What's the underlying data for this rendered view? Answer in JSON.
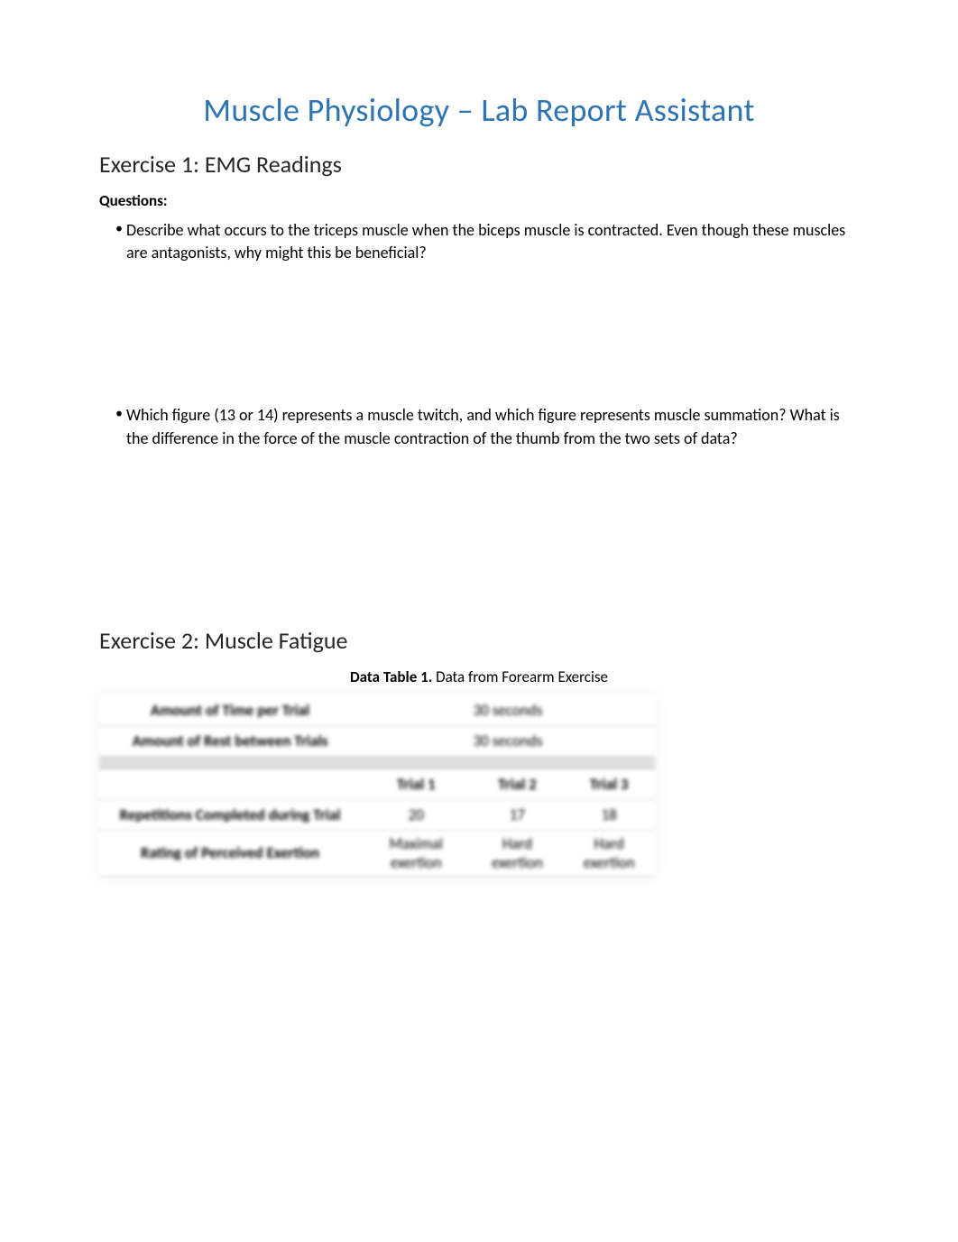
{
  "title": "Muscle Physiology – Lab Report Assistant",
  "exercise1": {
    "heading": "Exercise 1: EMG Readings",
    "questions_label": "Questions:",
    "bullets": [
      "Describe what occurs to the triceps muscle when the biceps muscle is contracted. Even though these muscles are antagonists, why might this be beneficial?",
      "Which figure (13 or 14) represents a muscle twitch, and which figure represents muscle summation? What is the difference in the force of the muscle contraction of the thumb from the two sets of data?"
    ]
  },
  "exercise2": {
    "heading": "Exercise 2: Muscle Fatigue",
    "table_title_bold": "Data Table 1.",
    "table_title_rest": " Data from Forearm Exercise",
    "top_rows": [
      {
        "label": "Amount of Time per Trial",
        "value": "30 seconds"
      },
      {
        "label": "Amount of Rest between Trials",
        "value": "30 seconds"
      }
    ],
    "columns": [
      "Trial 1",
      "Trial 2",
      "Trial 3"
    ],
    "data_rows": [
      {
        "label": "Repetitions Completed during Trial",
        "values": [
          "20",
          "17",
          "18"
        ]
      },
      {
        "label": "Rating of Perceived Exertion",
        "values": [
          "Maximal exertion",
          "Hard exertion",
          "Hard exertion"
        ]
      }
    ]
  },
  "colors": {
    "title": "#2e74b5",
    "heading": "#262626",
    "text": "#000000",
    "separator_bg": "#dedede",
    "border": "#d0d0d0"
  }
}
